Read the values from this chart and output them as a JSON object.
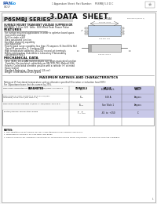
{
  "title": "3.DATA  SHEET",
  "series_title": "P6SMBJ SERIES",
  "series_subtitle": "SURFACE MOUNT TRANSIENT VOLTAGE SUPPRESSOR",
  "series_desc1": "VOLTAGE: 5.0 to 220  Volts  600 Watt Peak Power Pulse",
  "header_right": "1 Appendum Sheet: Part Number:    P6SMBJ 5.0 D C",
  "features_title": "FEATURES",
  "features": [
    "For surface mounted applications in order to optimize board space.",
    "Low-profile package",
    "Built-in strain relief",
    "Glass passivated junction",
    "Excellent clamping capability",
    "Low inductance",
    "Peak forward surge capability less than 70 amperes (8.3ms/60Hz SIn)",
    "Typical IR parameter: 1, 4 ampere IDB",
    "High temperature soldering: 260C/10 seconds at terminals",
    "Plastic package has Underwriters Laboratory (Flammability",
    "Classification 94V-0"
  ],
  "mechanical_title": "MECHANICAL DATA",
  "mechanical": [
    "Case: JEDEC DO-214AA molded plastic over glass passivated junction",
    "Terminals: Electroplated, solderable per MIL-STD-750, Method 2026",
    "Polarity: Coded band identifies positive with a cathode (+) oriented",
    "Epoxy coated",
    "Standard Packaging : Open tapreel (2K reel)",
    "Weight: 0.008 ounces/0.225 grams"
  ],
  "max_title": "MAXIMUM RATINGS AND CHARACTERISTICS",
  "max_note1": "Rating at 25 functional temperature unless otherwise specified (Deviation or induction heat 50%)",
  "max_note2": "For Capacitance/case devices current by 25%.",
  "table_headers": [
    "PARAMETER",
    "SYMBOLS",
    "VALUE",
    "UNITS"
  ],
  "table_rows_text": [
    [
      "Peak Power Dissipation at TA=25°C, T=1.0ms/60Hz, 8.3 Typ 5.1",
      "Pₚₙ",
      "600/on each",
      "Watts"
    ],
    [
      "Peak Forward Surge Current 8.3 msec 60 Hz (non-\nrepetitive) rated Load (See Note 2.3)",
      "Tₘₚ",
      "100 A",
      "Ampers"
    ],
    [
      "Peak Pulse Current Exceeds 7A/usec T=1ms/10ms, 10*Io 5.0",
      "Sₘₙₐ",
      "See Table 1",
      "Ampers"
    ],
    [
      "Junction/Storage Temperature Range",
      "Tₗ , Tₘₐ",
      "-65  to  +150",
      "C"
    ]
  ],
  "notes_title": "NOTES:",
  "notes": [
    "Non-repetitive current pulses, per Fig. 3 and standard allows TypeO0 Type d by 5.",
    "Measured on channel 2 on from body lead areas.",
    "REGULATION PULSE. UNREPETITIVE RANGE OF TRANSIENTS pulses NOTE: 600/1000W = B-SURFACE VOLTAGE SUPPRESS."
  ],
  "comp_label": "SMB/J12C-274AA",
  "comp_note": "smol smol (mark 1)",
  "bg_color": "#f5f5f5",
  "white": "#ffffff",
  "border_color": "#999999",
  "gray_bg": "#cccccc",
  "comp_fill": "#c8d8ee",
  "units_highlight": "#b8b8dd",
  "value_highlight": "#b8b8dd"
}
